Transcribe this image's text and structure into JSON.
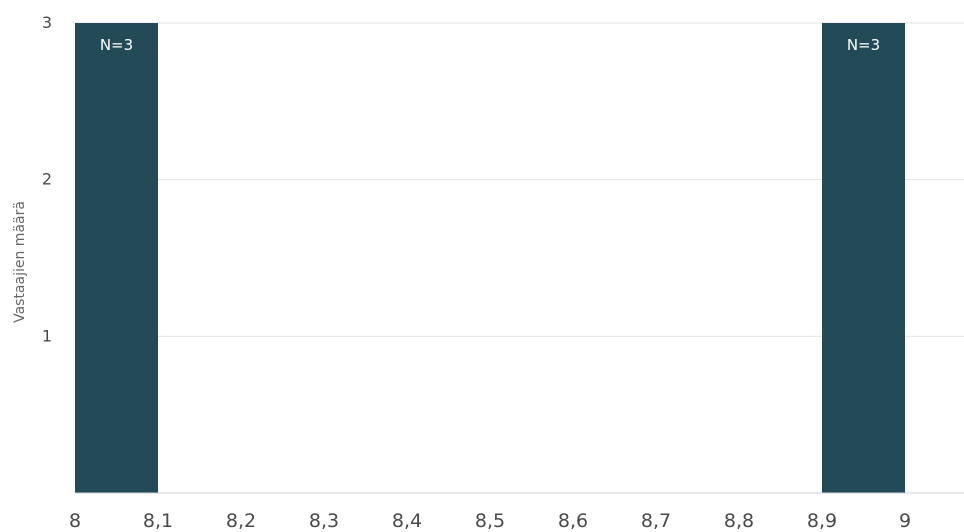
{
  "chart_data": {
    "type": "bar",
    "title": "",
    "xlabel": "",
    "ylabel": "Vastaajien määrä",
    "x_ticks": [
      "8",
      "8,1",
      "8,2",
      "8,3",
      "8,4",
      "8,5",
      "8,6",
      "8,7",
      "8,8",
      "8,9",
      "9"
    ],
    "y_ticks": [
      "1",
      "2",
      "3"
    ],
    "ylim": [
      0,
      3
    ],
    "xlim": [
      8,
      9
    ],
    "grid": true,
    "bar_color": "#234b57",
    "bars": [
      {
        "x_start": 8.0,
        "x_end": 8.1,
        "value": 3,
        "label": "N=3"
      },
      {
        "x_start": 8.9,
        "x_end": 9.0,
        "value": 3,
        "label": "N=3"
      }
    ]
  }
}
